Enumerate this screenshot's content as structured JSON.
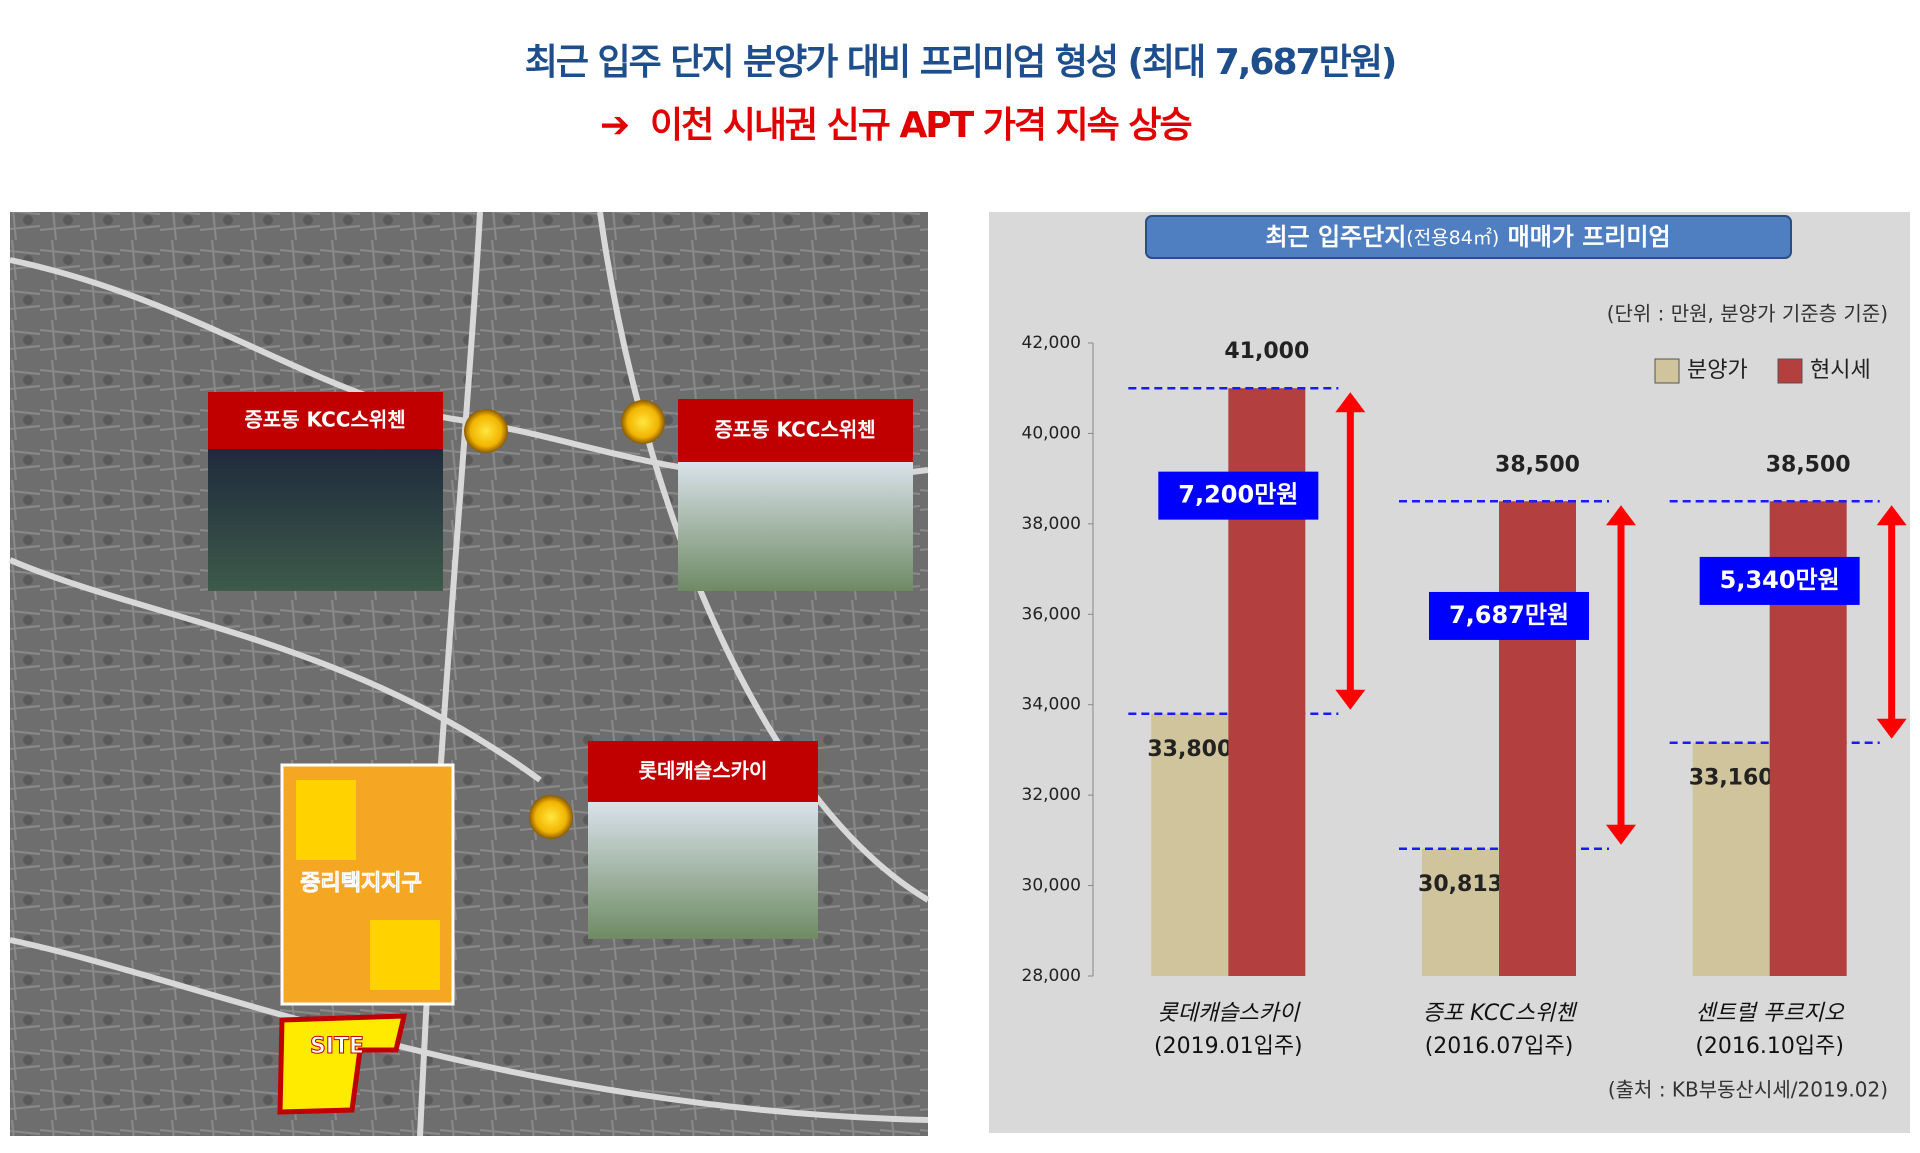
{
  "header": {
    "title": "최근 입주 단지 분양가 대비 프리미엄 형성 (최대 7,687만원)",
    "subtitle": "이천 시내권 신규 APT 가격 지속 상승"
  },
  "map": {
    "callouts": [
      "증포동 KCC스위첸",
      "증포동 KCC스위첸",
      "롯데캐슬스카이"
    ],
    "district": "중리택지지구",
    "site": "SITE"
  },
  "chart_data": {
    "type": "bar",
    "title": [
      "최근 입주단지",
      "(전용84㎡)",
      "매매가 프리미엄"
    ],
    "unit_note": "(단위 : 만원, 분양가 기준층 기준)",
    "source": "(출처 : KB부동산시세/2019.02)",
    "categories": [
      "롯데캐슬스카이",
      "증포 KCC스위첸",
      "센트럴 푸르지오"
    ],
    "category_sublabels": [
      "(2019.01입주)",
      "(2016.07입주)",
      "(2016.10입주)"
    ],
    "series": [
      {
        "name": "분양가",
        "color": "#cfc49c",
        "values": [
          33800,
          30813,
          33160
        ],
        "value_labels": [
          "33,800",
          "30,813",
          "33,160"
        ]
      },
      {
        "name": "현시세",
        "color": "#b3403e",
        "values": [
          41000,
          38500,
          38500
        ],
        "value_labels": [
          "41,000",
          "38,500",
          "38,500"
        ]
      }
    ],
    "premium_labels": [
      "7,200만원",
      "7,687만원",
      "5,340만원"
    ],
    "ylim": [
      28000,
      42000
    ],
    "yticks": [
      {
        "value": 28000,
        "label": "28,000"
      },
      {
        "value": 30000,
        "label": "30,000"
      },
      {
        "value": 32000,
        "label": "32,000"
      },
      {
        "value": 34000,
        "label": "34,000"
      },
      {
        "value": 36000,
        "label": "36,000"
      },
      {
        "value": 38000,
        "label": "38,000"
      },
      {
        "value": 40000,
        "label": "40,000"
      },
      {
        "value": 42000,
        "label": "42,000"
      }
    ],
    "legend": "top-right"
  }
}
